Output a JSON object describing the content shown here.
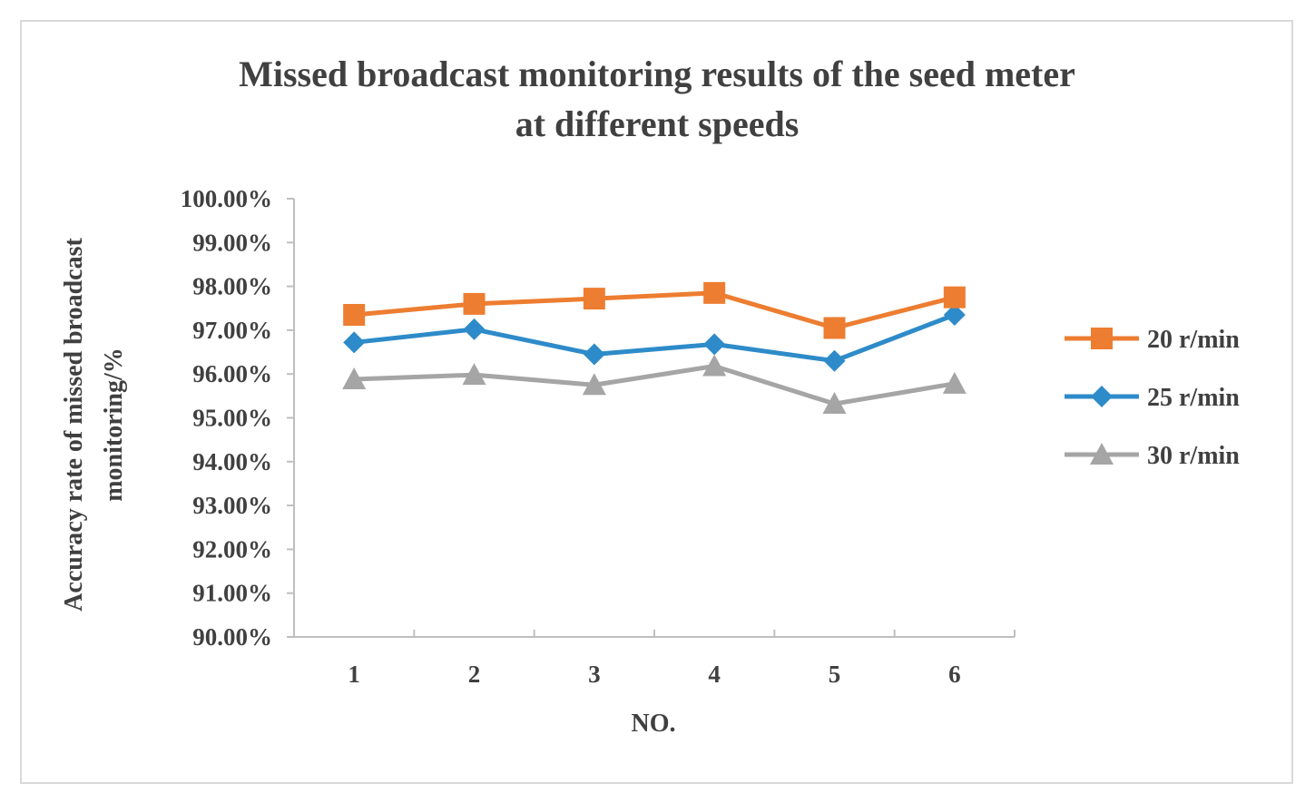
{
  "chart_data": {
    "type": "line",
    "title_lines": [
      "Missed broadcast monitoring results of the seed meter",
      "at different speeds"
    ],
    "xlabel": "NO.",
    "ylabel_lines": [
      "Accuracy rate of missed broadcast",
      "monitoring/%"
    ],
    "categories": [
      "1",
      "2",
      "3",
      "4",
      "5",
      "6"
    ],
    "ylim": [
      90,
      100
    ],
    "yticks": [
      90,
      91,
      92,
      93,
      94,
      95,
      96,
      97,
      98,
      99,
      100
    ],
    "ytick_labels": [
      "90.00%",
      "91.00%",
      "92.00%",
      "93.00%",
      "94.00%",
      "95.00%",
      "96.00%",
      "97.00%",
      "98.00%",
      "99.00%",
      "100.00%"
    ],
    "grid": false,
    "legend_position": "right",
    "series": [
      {
        "name": "20 r/min",
        "color": "#ED7D31",
        "marker": "square",
        "values": [
          97.35,
          97.6,
          97.72,
          97.85,
          97.05,
          97.75
        ]
      },
      {
        "name": "25 r/min",
        "color": "#2E8BC9",
        "marker": "diamond",
        "values": [
          96.72,
          97.02,
          96.45,
          96.68,
          96.3,
          97.35
        ]
      },
      {
        "name": "30 r/min",
        "color": "#A5A5A5",
        "marker": "triangle",
        "values": [
          95.88,
          95.98,
          95.75,
          96.18,
          95.32,
          95.78
        ]
      }
    ]
  }
}
